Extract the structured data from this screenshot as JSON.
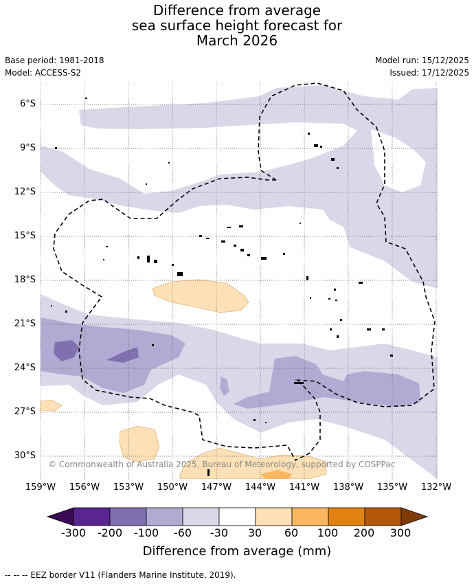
{
  "title_lines": [
    "Difference from average",
    "sea surface height forecast for",
    "March 2026"
  ],
  "meta_left": [
    "Base period: 1981-2018",
    "Model: ACCESS-S2"
  ],
  "meta_right": [
    "Model run: 15/12/2025",
    "Issued: 17/12/2025"
  ],
  "lat_labels": [
    "6°S",
    "9°S",
    "12°S",
    "15°S",
    "18°S",
    "21°S",
    "24°S",
    "27°S",
    "30°S"
  ],
  "lon_labels": [
    "159°W",
    "156°W",
    "153°W",
    "150°W",
    "147°W",
    "144°W",
    "141°W",
    "138°W",
    "135°W",
    "132°W"
  ],
  "colorbar": {
    "title": "Difference from average (mm)",
    "labels": [
      "-300",
      "-200",
      "-100",
      "-60",
      "-30",
      "30",
      "60",
      "100",
      "200",
      "300"
    ],
    "colors": [
      "#3b0a56",
      "#5a2590",
      "#8170b0",
      "#b1abd3",
      "#d8d8e9",
      "#ffffff",
      "#fde0b6",
      "#fbb75f",
      "#e1810f",
      "#b35806",
      "#7f3b08"
    ]
  },
  "watermark": "© Commonwealth of Australia 2025, Bureau of Meteorology, supported by COSPPac",
  "legend_text": "--  --  -- EEZ border V11 (Flanders Marine Institute, 2019)."
}
